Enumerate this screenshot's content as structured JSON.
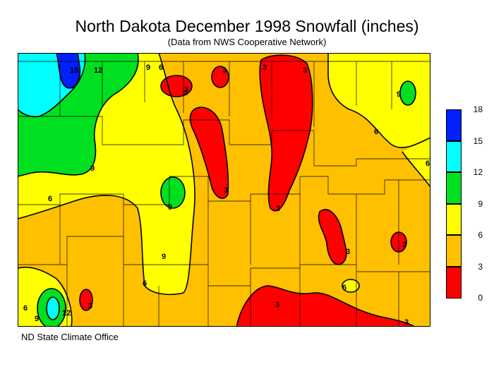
{
  "title": "North Dakota December 1998 Snowfall (inches)",
  "subtitle": "(Data from NWS Cooperative Network)",
  "credit": "ND State Climate Office",
  "legend": {
    "bins": [
      {
        "from": 0,
        "to": 3,
        "color": "#ff0000"
      },
      {
        "from": 3,
        "to": 6,
        "color": "#ffc000"
      },
      {
        "from": 6,
        "to": 9,
        "color": "#ffff00"
      },
      {
        "from": 9,
        "to": 12,
        "color": "#00e020"
      },
      {
        "from": 12,
        "to": 15,
        "color": "#00ffff"
      },
      {
        "from": 15,
        "to": 18,
        "color": "#0020ff"
      }
    ],
    "ticks": [
      "0",
      "3",
      "6",
      "9",
      "12",
      "15",
      "18"
    ]
  },
  "contour_labels": [
    "15",
    "12",
    "9",
    "6",
    "3",
    "3",
    "3",
    "3",
    "9",
    "6",
    "9",
    "3",
    "3",
    "6",
    "3",
    "3",
    "9",
    "12",
    "9",
    "6",
    "3",
    "3",
    "6",
    "6",
    "3",
    "3",
    "6",
    "9"
  ]
}
